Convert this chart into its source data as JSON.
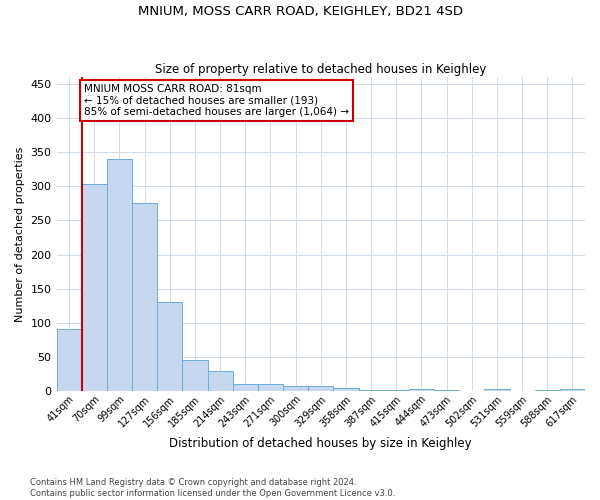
{
  "title": "MNIUM, MOSS CARR ROAD, KEIGHLEY, BD21 4SD",
  "subtitle": "Size of property relative to detached houses in Keighley",
  "xlabel": "Distribution of detached houses by size in Keighley",
  "ylabel": "Number of detached properties",
  "bin_labels": [
    "41sqm",
    "70sqm",
    "99sqm",
    "127sqm",
    "156sqm",
    "185sqm",
    "214sqm",
    "243sqm",
    "271sqm",
    "300sqm",
    "329sqm",
    "358sqm",
    "387sqm",
    "415sqm",
    "444sqm",
    "473sqm",
    "502sqm",
    "531sqm",
    "559sqm",
    "588sqm",
    "617sqm"
  ],
  "bar_values": [
    91,
    303,
    340,
    276,
    131,
    46,
    30,
    10,
    10,
    7,
    7,
    4,
    2,
    2,
    3,
    2,
    0,
    3,
    0,
    2,
    3
  ],
  "bar_color": "#c5d8f0",
  "bar_edge_color": "#6baed6",
  "grid_color": "#d0dcea",
  "background_color": "#ffffff",
  "marker_bin_index": 1,
  "marker_color": "#cc0000",
  "annotation_text": "MNIUM MOSS CARR ROAD: 81sqm\n← 15% of detached houses are smaller (193)\n85% of semi-detached houses are larger (1,064) →",
  "annotation_box_color": "#ffffff",
  "annotation_box_edge": "#cc0000",
  "footer_line1": "Contains HM Land Registry data © Crown copyright and database right 2024.",
  "footer_line2": "Contains public sector information licensed under the Open Government Licence v3.0.",
  "ylim": [
    0,
    460
  ],
  "yticks": [
    0,
    50,
    100,
    150,
    200,
    250,
    300,
    350,
    400,
    450
  ]
}
